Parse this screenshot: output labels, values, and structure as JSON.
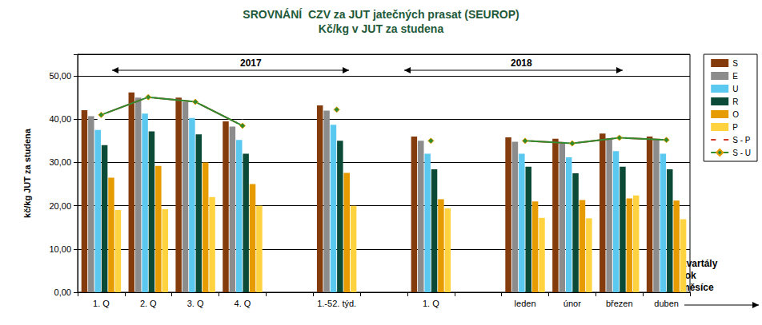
{
  "chart_data": {
    "type": "bar",
    "title": "SROVNÁNÍ  CZV za JUT jatečných prasat (SEUROP)",
    "subtitle": "Kč/kg v JUT za studena",
    "ylabel": "kč/kg JUT za studena",
    "xlabel_lines": [
      "kvartály",
      "rok",
      "měsíce"
    ],
    "annotations": [
      "2017",
      "2018"
    ],
    "categories": [
      "1. Q",
      "2. Q",
      "3. Q",
      "4. Q",
      null,
      "1.-52. týd.",
      null,
      "1. Q",
      null,
      "leden",
      "únor",
      "březen",
      "duben"
    ],
    "series": [
      {
        "name": "S",
        "type": "bar",
        "color": "#843C0C",
        "values": [
          42.1,
          46.2,
          45.0,
          39.5,
          null,
          43.2,
          null,
          36.0,
          null,
          35.8,
          35.5,
          36.7,
          36.0
        ]
      },
      {
        "name": "E",
        "type": "bar",
        "color": "#8C8C8C",
        "values": [
          40.7,
          45.0,
          44.0,
          38.3,
          null,
          42.0,
          null,
          35.0,
          null,
          34.8,
          34.4,
          35.5,
          35.2
        ]
      },
      {
        "name": "U",
        "type": "bar",
        "color": "#5BC8F0",
        "values": [
          37.5,
          41.3,
          40.3,
          35.2,
          null,
          38.7,
          null,
          32.0,
          null,
          32.0,
          31.2,
          32.6,
          32.0
        ]
      },
      {
        "name": "R",
        "type": "bar",
        "color": "#0B4A36",
        "values": [
          34.0,
          37.2,
          36.5,
          32.0,
          null,
          35.0,
          null,
          28.4,
          null,
          29.0,
          27.5,
          29.0,
          28.4
        ]
      },
      {
        "name": "O",
        "type": "bar",
        "color": "#E69B00",
        "values": [
          26.5,
          29.2,
          30.0,
          25.0,
          null,
          27.6,
          null,
          21.5,
          null,
          21.0,
          21.3,
          21.7,
          21.2
        ]
      },
      {
        "name": "P",
        "type": "bar",
        "color": "#FFD23F",
        "values": [
          19.0,
          19.2,
          22.0,
          20.0,
          null,
          20.0,
          null,
          19.4,
          null,
          17.2,
          17.1,
          22.4,
          16.9
        ]
      },
      {
        "name": "S - P",
        "type": "line",
        "color": "#D03A2A",
        "marker": "circle",
        "values": [
          41.0,
          45.1,
          44.0,
          38.5,
          null,
          42.2,
          null,
          35.0,
          null,
          35.0,
          34.4,
          35.7,
          35.2
        ]
      },
      {
        "name": "S - U",
        "type": "line",
        "color": "#2E8B2E",
        "marker": "diamond",
        "values": [
          41.0,
          45.1,
          44.0,
          38.5,
          null,
          42.2,
          null,
          35.0,
          null,
          35.0,
          34.4,
          35.7,
          35.2
        ]
      }
    ],
    "ylim": [
      0,
      55
    ],
    "yticks": [
      {
        "value": 0,
        "label": "0,00"
      },
      {
        "value": 10,
        "label": "10,00"
      },
      {
        "value": 20,
        "label": "20,00"
      },
      {
        "value": 30,
        "label": "30,00"
      },
      {
        "value": 40,
        "label": "40,00"
      },
      {
        "value": 50,
        "label": "50,00"
      }
    ],
    "grid": true,
    "legend": "right"
  }
}
